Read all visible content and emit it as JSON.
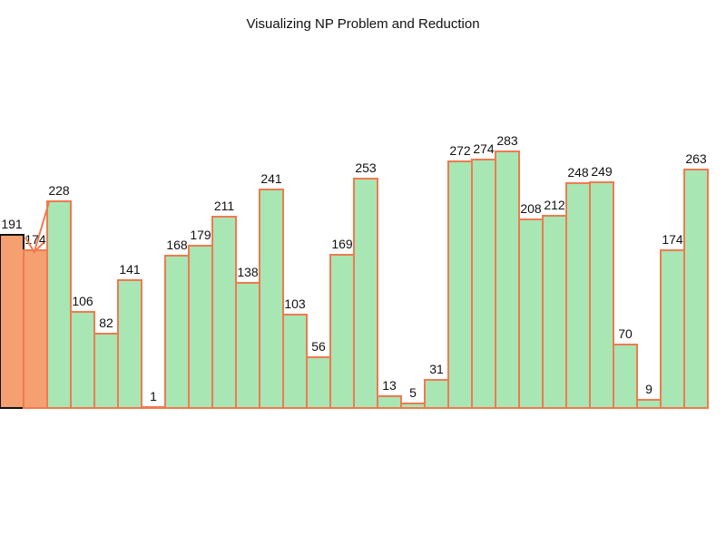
{
  "chart_data": {
    "type": "bar",
    "title": "Visualizing NP Problem and Reduction",
    "xlabel": "",
    "ylabel": "",
    "values": [
      191,
      174,
      228,
      106,
      82,
      141,
      1,
      168,
      179,
      211,
      138,
      241,
      103,
      56,
      169,
      253,
      13,
      5,
      31,
      272,
      274,
      283,
      208,
      212,
      248,
      249,
      70,
      9,
      174,
      263
    ],
    "ylim": [
      0,
      283
    ],
    "axes_visible": false,
    "grid": false,
    "legend": "none",
    "highlight": [
      0,
      1
    ],
    "annotation": "arrow from bar 3 to bar 2",
    "colors": {
      "default_fill": "#a8e6b4",
      "default_stroke": "#f07a50",
      "highlight_first_fill": "#f4a070",
      "highlight_first_stroke": "#111111",
      "highlight_second_fill": "#f4a070",
      "highlight_second_stroke": "#f07a50",
      "arrow": "#f07a50"
    }
  }
}
